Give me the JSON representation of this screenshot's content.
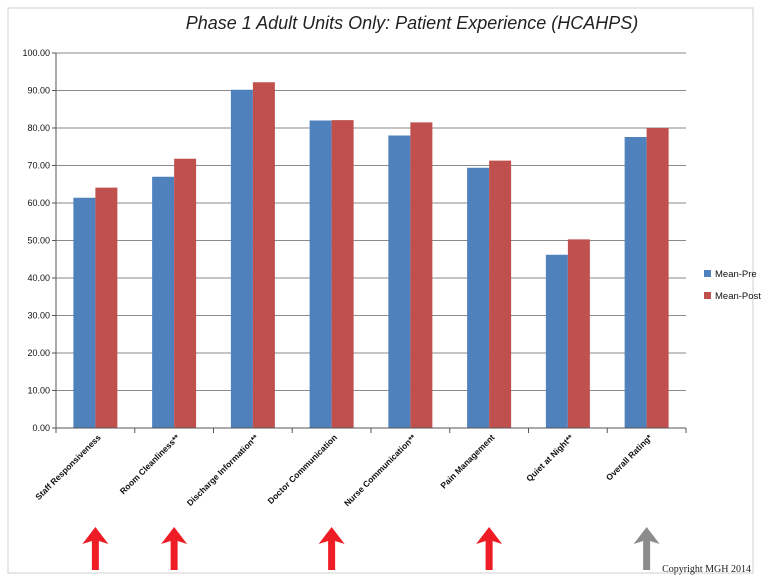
{
  "chart_data": {
    "type": "bar",
    "title": "Phase 1 Adult Units Only: Patient Experience (HCAHPS)",
    "xlabel": "",
    "ylabel": "",
    "ylim": [
      0,
      100
    ],
    "yticks": [
      "0.00",
      "10.00",
      "20.00",
      "30.00",
      "40.00",
      "50.00",
      "60.00",
      "70.00",
      "80.00",
      "90.00",
      "100.00"
    ],
    "grid": true,
    "legend_position": "right",
    "categories": [
      "Staff Responsiveness",
      "Room Cleanliness**",
      "Discharge Information**",
      "Doctor Communication",
      "Nurse Communication**",
      "Pain Management",
      "Quiet at Night**",
      "Overall Rating*"
    ],
    "series": [
      {
        "name": "Mean-Pre",
        "color": "#4f81bd",
        "values": [
          61.4,
          67.0,
          90.2,
          82.0,
          78.0,
          69.4,
          46.2,
          77.6
        ]
      },
      {
        "name": "Mean-Post",
        "color": "#c0504d",
        "values": [
          64.1,
          71.8,
          92.2,
          82.1,
          81.5,
          71.3,
          50.3,
          80.0
        ]
      }
    ],
    "annotations": {
      "arrows": [
        {
          "category_index": 0,
          "color": "#ee1c25",
          "direction": "up"
        },
        {
          "category_index": 1,
          "color": "#ee1c25",
          "direction": "up"
        },
        {
          "category_index": 3,
          "color": "#ee1c25",
          "direction": "up"
        },
        {
          "category_index": 5,
          "color": "#ee1c25",
          "direction": "up"
        },
        {
          "category_index": 7,
          "color": "#8c8c8c",
          "direction": "up"
        }
      ]
    }
  },
  "copyright": "Copyright MGH 2014"
}
